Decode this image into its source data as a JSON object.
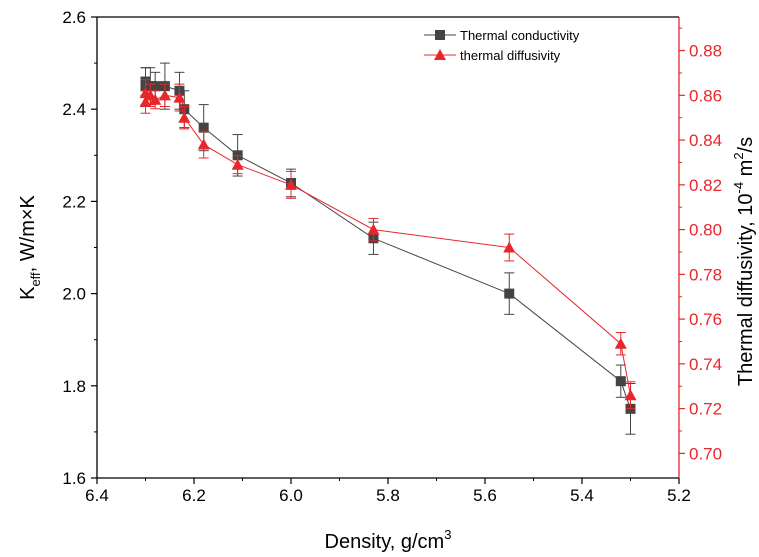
{
  "chart_data": {
    "type": "line",
    "xlabel": "Density, g/cm",
    "xlabel_superscript": "3",
    "ylabel_left": {
      "K": "K",
      "sub": "eff",
      "rest": ", W/m×K"
    },
    "ylabel_right": {
      "pre": "Thermal diffusivity, 10",
      "sup1": "-4",
      "mid": " m",
      "sup2": "2",
      "post": "/s"
    },
    "xlim": [
      6.4,
      5.2
    ],
    "ylim_left": [
      1.6,
      2.6
    ],
    "ylim_right": [
      0.689,
      0.895
    ],
    "xticks": [
      "6.4",
      "6.2",
      "6.0",
      "5.8",
      "5.6",
      "5.4",
      "5.2"
    ],
    "yticks_left": [
      "1.6",
      "1.8",
      "2.0",
      "2.2",
      "2.4",
      "2.6"
    ],
    "yticks_right": [
      "0.70",
      "0.72",
      "0.74",
      "0.76",
      "0.78",
      "0.80",
      "0.82",
      "0.84",
      "0.86",
      "0.88"
    ],
    "legend_position": "top-right",
    "series": [
      {
        "name": "Thermal conductivity",
        "axis": "left",
        "marker": "square",
        "color": "#444444",
        "x": [
          6.3,
          6.3,
          6.29,
          6.28,
          6.26,
          6.23,
          6.22,
          6.18,
          6.11,
          6.0,
          5.83,
          5.55,
          5.32,
          5.3
        ],
        "y": [
          2.46,
          2.45,
          2.45,
          2.45,
          2.45,
          2.44,
          2.4,
          2.36,
          2.3,
          2.24,
          2.12,
          2.0,
          1.81,
          1.75
        ],
        "err": [
          0.03,
          0.04,
          0.04,
          0.03,
          0.05,
          0.04,
          0.04,
          0.05,
          0.045,
          0.03,
          0.035,
          0.045,
          0.035,
          0.055
        ]
      },
      {
        "name": "thermal diffusivity",
        "axis": "right",
        "marker": "triangle",
        "color": "#e8262b",
        "x": [
          6.3,
          6.3,
          6.29,
          6.28,
          6.26,
          6.23,
          6.22,
          6.18,
          6.11,
          6.0,
          5.83,
          5.55,
          5.32,
          5.3
        ],
        "y": [
          0.857,
          0.861,
          0.86,
          0.858,
          0.86,
          0.859,
          0.85,
          0.838,
          0.829,
          0.82,
          0.8,
          0.792,
          0.749,
          0.726
        ],
        "err": [
          0.005,
          0.006,
          0.005,
          0.004,
          0.005,
          0.006,
          0.005,
          0.006,
          0.004,
          0.006,
          0.005,
          0.006,
          0.005,
          0.006
        ]
      }
    ]
  }
}
